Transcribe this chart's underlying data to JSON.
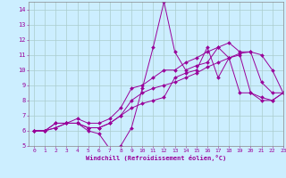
{
  "xlabel": "Windchill (Refroidissement éolien,°C)",
  "xlim": [
    -0.5,
    23
  ],
  "ylim": [
    5,
    14.5
  ],
  "xticks": [
    0,
    1,
    2,
    3,
    4,
    5,
    6,
    7,
    8,
    9,
    10,
    11,
    12,
    13,
    14,
    15,
    16,
    17,
    18,
    19,
    20,
    21,
    22,
    23
  ],
  "yticks": [
    5,
    6,
    7,
    8,
    9,
    10,
    11,
    12,
    13,
    14
  ],
  "bg_color": "#cceeff",
  "line_color": "#990099",
  "grid_color": "#aacccc",
  "lines": [
    [
      6.0,
      6.0,
      6.5,
      6.5,
      6.5,
      6.0,
      5.8,
      4.8,
      5.0,
      6.2,
      8.8,
      11.5,
      14.5,
      11.2,
      10.0,
      10.3,
      10.5,
      11.5,
      10.8,
      11.1,
      11.2,
      11.0,
      10.0,
      8.5
    ],
    [
      6.0,
      6.0,
      6.5,
      6.5,
      6.8,
      6.5,
      6.5,
      6.8,
      7.5,
      8.8,
      9.0,
      9.5,
      10.0,
      10.0,
      10.5,
      10.8,
      11.2,
      11.5,
      11.8,
      11.2,
      11.2,
      9.2,
      8.5,
      8.5
    ],
    [
      6.0,
      6.0,
      6.2,
      6.5,
      6.5,
      6.2,
      6.2,
      6.5,
      7.0,
      8.0,
      8.5,
      8.8,
      9.0,
      9.2,
      9.5,
      9.8,
      10.2,
      10.5,
      10.8,
      11.0,
      8.5,
      8.2,
      8.0,
      8.5
    ],
    [
      6.0,
      6.0,
      6.2,
      6.5,
      6.5,
      6.2,
      6.2,
      6.5,
      7.0,
      7.5,
      7.8,
      8.0,
      8.2,
      9.5,
      9.8,
      10.0,
      11.5,
      9.5,
      10.8,
      8.5,
      8.5,
      8.0,
      8.0,
      8.5
    ]
  ]
}
